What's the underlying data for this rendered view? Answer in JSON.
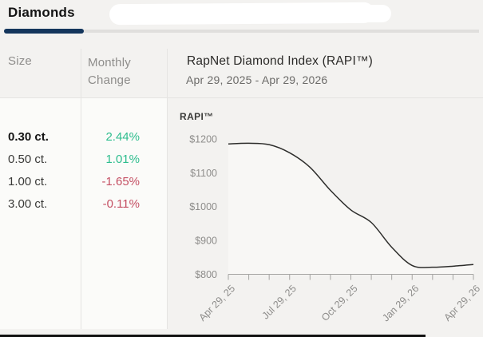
{
  "tab_bar": {
    "active_tab": "Diamonds"
  },
  "table": {
    "size_header": "Size",
    "change_header": "Monthly Change",
    "rows": [
      {
        "size": "0.30 ct.",
        "change": "2.44%",
        "direction": "up",
        "selected": true
      },
      {
        "size": "0.50 ct.",
        "change": "1.01%",
        "direction": "up",
        "selected": false
      },
      {
        "size": "1.00 ct.",
        "change": "-1.65%",
        "direction": "down",
        "selected": false
      },
      {
        "size": "3.00 ct.",
        "change": "-0.11%",
        "direction": "down",
        "selected": false
      }
    ]
  },
  "chart": {
    "title": "RapNet Diamond Index (RAPI™)",
    "date_range": "Apr 29, 2025 - Apr 29, 2026",
    "series_label": "RAPI™"
  },
  "chart_data": {
    "type": "line",
    "title": "RapNet Diamond Index (RAPI™)",
    "subtitle": "Apr 29, 2025 - Apr 29, 2026",
    "series_name": "RAPI™",
    "x": [
      "Apr 29, 25",
      "May 29, 25",
      "Jun 29, 25",
      "Jul 29, 25",
      "Aug 29, 25",
      "Sep 29, 25",
      "Oct 29, 25",
      "Nov 29, 25",
      "Dec 29, 25",
      "Jan 29, 26",
      "Feb 28, 26",
      "Mar 29, 26",
      "Apr 29, 26"
    ],
    "values": [
      1185,
      1187,
      1183,
      1159,
      1116,
      1048,
      990,
      953,
      880,
      826,
      821,
      824,
      829
    ],
    "x_tick_labels": [
      "Apr 29, 25",
      "Jul 29, 25",
      "Oct 29, 25",
      "Jan 29, 26",
      "Apr 29, 26"
    ],
    "x_label_indices": [
      0,
      3,
      6,
      9,
      12
    ],
    "y_tick_labels": [
      "$1200",
      "$1100",
      "$1000",
      "$900",
      "$800"
    ],
    "y_tick_values": [
      1200,
      1100,
      1000,
      900,
      800
    ],
    "ylim": [
      800,
      1200
    ],
    "xlabel": "",
    "ylabel": "",
    "grid": false,
    "legend_position": "none"
  },
  "colors": {
    "positive": "#2ebd8e",
    "negative": "#c44f63",
    "active_tab_underline": "#14365c",
    "line": "#2d2d2b",
    "area_fill": "#f8f7f5",
    "axis": "#a6a5a3",
    "muted_text": "#8e8d8b",
    "page_background": "#f3f2f0"
  }
}
